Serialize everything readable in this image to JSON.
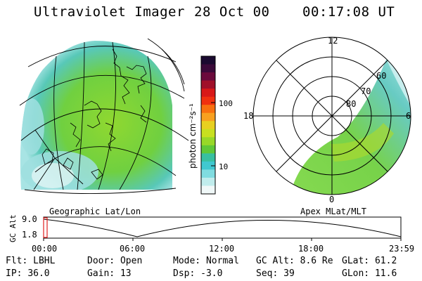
{
  "header": {
    "title": "Ultraviolet Imager",
    "date": "28 Oct 00",
    "time": "00:17:08 UT"
  },
  "left_panel": {
    "label": "Geographic Lat/Lon"
  },
  "right_panel": {
    "label": "Apex MLat/MLT",
    "mlt_labels": [
      "12",
      "18",
      "6",
      "0"
    ],
    "lat_labels": [
      "60",
      "70",
      "80"
    ]
  },
  "colorbar": {
    "unit": "photon cm⁻²s⁻¹",
    "ticks": [
      "100",
      "10"
    ],
    "colors": [
      "#1a0a30",
      "#3b0a3a",
      "#6b0a3c",
      "#a0102a",
      "#d81818",
      "#f03010",
      "#f87010",
      "#f8a020",
      "#e8d020",
      "#c8e020",
      "#98d828",
      "#60c838",
      "#38c0a0",
      "#40c8d0",
      "#80dce0",
      "#c0ecec",
      "#f0f8f8"
    ]
  },
  "timeline": {
    "axis_label": "GC Alt",
    "y_ticks": [
      "9.0",
      "1.8"
    ],
    "x_ticks": [
      "00:00",
      "06:00",
      "12:00",
      "18:00",
      "23:59"
    ],
    "marker_color": "#e02020"
  },
  "status": {
    "row1": [
      {
        "label": "Flt:",
        "value": "LBHL"
      },
      {
        "label": "Door:",
        "value": "Open"
      },
      {
        "label": "Mode:",
        "value": "Normal"
      },
      {
        "label": "GC Alt:",
        "value": "8.6 Re"
      },
      {
        "label": "GLat:",
        "value": "61.2"
      }
    ],
    "row2": [
      {
        "label": "IP:",
        "value": "36.0"
      },
      {
        "label": "Gain:",
        "value": "13"
      },
      {
        "label": "Dsp:",
        "value": "-3.0"
      },
      {
        "label": "Seq:",
        "value": "39"
      },
      {
        "label": "GLon:",
        "value": "11.6"
      }
    ]
  }
}
